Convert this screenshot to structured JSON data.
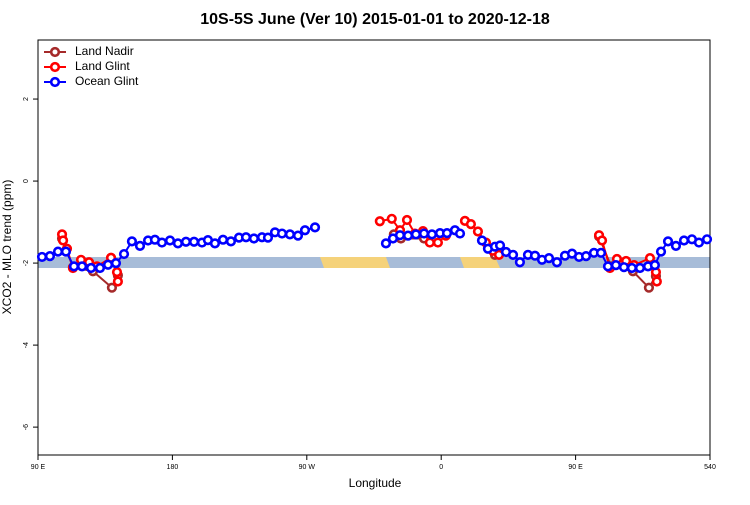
{
  "chart_data": {
    "type": "line",
    "title": "10S-5S June (Ver 10)   2015-01-01 to 2020-12-18",
    "xlabel": "Longitude",
    "ylabel": "XCO2 - MLO trend (ppm)",
    "xlim": [
      90,
      540
    ],
    "ylim": [
      -6.68,
      3.44
    ],
    "xticks": [
      {
        "value": 90,
        "label": "90 E"
      },
      180,
      {
        "value": 270,
        "label": "90 W"
      },
      {
        "value": 360,
        "label": "0"
      },
      {
        "value": 450,
        "label": "90 E"
      },
      540
    ],
    "yticks": [
      -6,
      -4,
      -2,
      0,
      2
    ],
    "legend": "top-left",
    "series": [
      {
        "name": "Land Nadir",
        "color": "#a52a2a",
        "x": [
          106.1,
          113.4,
          126.8,
          139.5,
          143.5,
          240,
          328.3,
          333.0,
          348.5,
          400,
          396.0,
          500,
          465.7,
          473.7,
          488.4,
          499.1,
          503.8
        ],
        "values": [
          -1.4,
          -2.1,
          -2.2,
          -2.6,
          -2.3,
          null,
          -1.3,
          -1.4,
          -1.4,
          null,
          -1.8,
          null,
          -1.35,
          -2.08,
          -2.2,
          -2.6,
          -2.32
        ]
      },
      {
        "name": "Land Glint",
        "color": "#ff0000",
        "x": [
          106.1,
          106.8,
          109.4,
          113.4,
          118.8,
          124.2,
          129.5,
          138.9,
          142.9,
          143.5,
          240,
          318.9,
          326.9,
          332.4,
          337.1,
          342.4,
          347.8,
          352.4,
          357.8,
          363.1,
          370,
          375.9,
          379.9,
          384.6,
          390.0,
          394.6,
          398.7,
          440,
          465.7,
          467.7,
          473.0,
          477.7,
          483.8,
          489.1,
          499.8,
          503.8,
          504.4
        ],
        "values": [
          -1.3,
          -1.45,
          -1.65,
          -2.12,
          -1.92,
          -1.98,
          -2.08,
          -1.87,
          -2.22,
          -2.45,
          null,
          -0.98,
          -0.92,
          -1.2,
          -0.95,
          -1.28,
          -1.22,
          -1.5,
          -1.5,
          -1.33,
          null,
          -0.97,
          -1.05,
          -1.23,
          -1.5,
          -1.7,
          -1.8,
          null,
          -1.32,
          -1.45,
          -2.12,
          -1.9,
          -1.95,
          -2.05,
          -1.88,
          -2.22,
          -2.45
        ]
      },
      {
        "name": "Ocean Glint",
        "color": "#0000ff",
        "x": [
          92.7,
          98.0,
          103.4,
          108.7,
          114.1,
          119.5,
          125.5,
          131.5,
          136.9,
          142.2,
          147.6,
          152.9,
          158.3,
          163.7,
          168.3,
          173.0,
          178.4,
          183.7,
          189.1,
          194.5,
          199.8,
          203.8,
          208.5,
          213.9,
          219.2,
          224.6,
          229.3,
          234.6,
          240.0,
          244.0,
          248.7,
          253.4,
          258.7,
          264.1,
          268.8,
          275.5,
          300,
          323.0,
          327.7,
          332.4,
          337.8,
          343.1,
          348.5,
          353.8,
          359.2,
          363.9,
          369.2,
          372.6,
          380,
          387.3,
          391.3,
          396.0,
          399.4,
          403.4,
          408.1,
          412.7,
          418.1,
          422.8,
          427.5,
          432.2,
          437.5,
          442.9,
          447.6,
          452.3,
          457.0,
          462.3,
          467.0,
          471.7,
          477.0,
          482.4,
          487.7,
          493.1,
          498.5,
          503.1,
          507.2,
          511.9,
          517.2,
          522.6,
          527.9,
          532.6,
          538.0
        ],
        "values": [
          -1.85,
          -1.83,
          -1.72,
          -1.72,
          -2.08,
          -2.08,
          -2.12,
          -2.12,
          -2.04,
          -2.0,
          -1.78,
          -1.47,
          -1.58,
          -1.45,
          -1.43,
          -1.5,
          -1.45,
          -1.52,
          -1.48,
          -1.48,
          -1.5,
          -1.44,
          -1.52,
          -1.43,
          -1.47,
          -1.38,
          -1.37,
          -1.4,
          -1.37,
          -1.38,
          -1.25,
          -1.28,
          -1.3,
          -1.33,
          -1.2,
          -1.13,
          null,
          -1.52,
          -1.4,
          -1.32,
          -1.33,
          -1.3,
          -1.28,
          -1.3,
          -1.27,
          -1.27,
          -1.2,
          -1.28,
          null,
          -1.45,
          -1.65,
          -1.6,
          -1.57,
          -1.73,
          -1.8,
          -1.98,
          -1.8,
          -1.82,
          -1.92,
          -1.88,
          -1.98,
          -1.82,
          -1.77,
          -1.85,
          -1.83,
          -1.75,
          -1.75,
          -2.08,
          -2.05,
          -2.1,
          -2.12,
          -2.12,
          -2.08,
          -2.05,
          -1.72,
          -1.47,
          -1.58,
          -1.45,
          -1.42,
          -1.5,
          -1.42
        ]
      }
    ]
  }
}
